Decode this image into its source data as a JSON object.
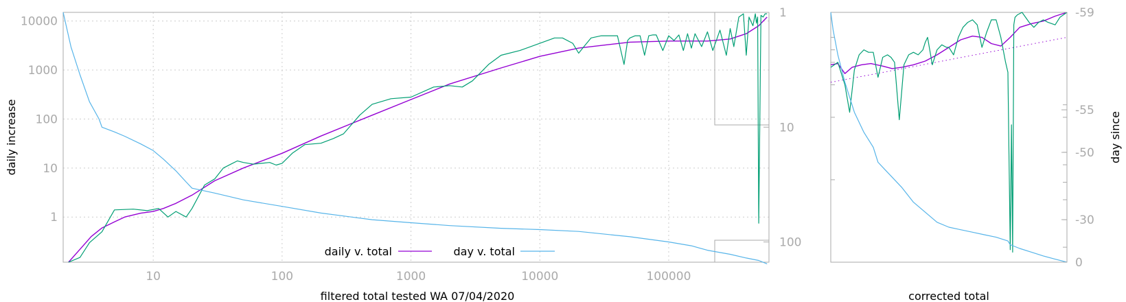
{
  "chart_data": [
    {
      "type": "line",
      "title": "",
      "xlabel": "filtered total tested WA 07/04/2020",
      "ylabel": "daily increase",
      "y2label": "",
      "x_scale": "log",
      "y_scale": "log",
      "y2_scale": "log",
      "y2_reversed": true,
      "xlim": [
        2,
        600000
      ],
      "ylim": [
        0.12,
        15000
      ],
      "y2lim": [
        1,
        150
      ],
      "grid": true,
      "legend_position": "bottom-center",
      "x_ticks": [
        "10",
        "100",
        "1000",
        "10000",
        "100000"
      ],
      "y_ticks": [
        "1",
        "10",
        "100",
        "1000",
        "10000"
      ],
      "y2_ticks": [
        "1",
        "10",
        "100"
      ],
      "colors": {
        "daily_smooth": "#9400d3",
        "daily_raw": "#009e73",
        "day": "#56b4e9",
        "frame": "#aaaaaa"
      },
      "series": [
        {
          "name": "daily v. total",
          "axis": "y",
          "x": [
            2.2,
            2.7,
            3.3,
            4,
            5,
            6,
            8,
            10,
            12,
            15,
            20,
            30,
            50,
            100,
            200,
            500,
            1000,
            2000,
            5000,
            10000,
            20000,
            50000,
            100000,
            200000,
            300000,
            400000,
            500000,
            580000
          ],
          "y": [
            0.12,
            0.22,
            0.4,
            0.6,
            0.8,
            1.0,
            1.2,
            1.3,
            1.5,
            1.9,
            2.8,
            5.5,
            10,
            20,
            45,
            120,
            250,
            520,
            1100,
            1900,
            2800,
            3700,
            3900,
            3900,
            4300,
            5500,
            8000,
            12000
          ]
        },
        {
          "name": "",
          "axis": "y",
          "x": [
            2.2,
            2.7,
            3.2,
            4,
            5,
            7,
            9,
            11,
            13,
            15,
            18,
            20,
            25,
            30,
            35,
            40,
            45,
            50,
            60,
            70,
            80,
            90,
            100,
            120,
            150,
            200,
            250,
            300,
            400,
            500,
            700,
            1000,
            1500,
            2000,
            2500,
            3000,
            4000,
            5000,
            7000,
            10000,
            13000,
            15000,
            18000,
            20000,
            22000,
            25000,
            30000,
            40000,
            45000,
            48000,
            50000,
            55000,
            60000,
            65000,
            70000,
            75000,
            80000,
            90000,
            100000,
            110000,
            120000,
            130000,
            140000,
            150000,
            160000,
            180000,
            200000,
            220000,
            250000,
            280000,
            300000,
            320000,
            350000,
            380000,
            400000,
            420000,
            450000,
            470000,
            480000,
            490000,
            500000,
            520000,
            540000,
            560000,
            580000
          ],
          "y": [
            0.12,
            0.15,
            0.3,
            0.5,
            1.4,
            1.45,
            1.35,
            1.5,
            1.0,
            1.3,
            1.0,
            1.5,
            4.5,
            6,
            10,
            12,
            14,
            13,
            12,
            12.5,
            13,
            11.5,
            12.5,
            20,
            30,
            32,
            40,
            50,
            120,
            200,
            260,
            280,
            450,
            480,
            450,
            600,
            1300,
            2000,
            2500,
            3500,
            4500,
            4500,
            3500,
            2200,
            3000,
            4500,
            5000,
            5000,
            1300,
            4000,
            4500,
            5000,
            5000,
            2000,
            5000,
            5200,
            5200,
            2500,
            5000,
            4000,
            5200,
            2500,
            5500,
            2800,
            5500,
            3000,
            6000,
            2500,
            6500,
            2000,
            7000,
            3000,
            12000,
            14000,
            2000,
            12000,
            8000,
            14000,
            9000,
            12000,
            0.75,
            13000,
            12000,
            14000,
            14000
          ]
        },
        {
          "name": "day v. total",
          "axis": "y2",
          "x": [
            2,
            2.3,
            2.7,
            3.2,
            3.8,
            4,
            5,
            6,
            8,
            10,
            12,
            15,
            18,
            20,
            30,
            50,
            100,
            200,
            500,
            1000,
            2000,
            5000,
            10000,
            20000,
            50000,
            100000,
            150000,
            200000,
            300000,
            400000,
            500000,
            580000
          ],
          "y": [
            1,
            2,
            3.5,
            6,
            8.5,
            10,
            11,
            12,
            14,
            16,
            19,
            24,
            30,
            34,
            37.5,
            43,
            49,
            56,
            64,
            68,
            72,
            76,
            78,
            81,
            90,
            100,
            108,
            118,
            128,
            138,
            145,
            155
          ]
        }
      ]
    },
    {
      "type": "line",
      "title": "",
      "xlabel": "corrected total",
      "ylabel": "",
      "y2label": "day since",
      "x_ticks": [],
      "y_ticks": [],
      "y2_ticks": [
        "-59",
        "-55",
        "-50",
        "-30",
        "0"
      ],
      "grid": false,
      "series": [
        {
          "name": "",
          "axis": "y",
          "x": [
            0,
            0.03,
            0.06,
            0.09,
            0.13,
            0.17,
            0.22,
            0.26,
            0.3,
            0.35,
            0.4,
            0.45,
            0.5,
            0.55,
            0.6,
            0.64,
            0.68,
            0.72,
            0.76,
            0.8,
            0.85,
            0.9,
            0.95,
            1.0
          ],
          "y": [
            0.79,
            0.795,
            0.755,
            0.78,
            0.79,
            0.795,
            0.785,
            0.775,
            0.78,
            0.79,
            0.805,
            0.83,
            0.86,
            0.89,
            0.905,
            0.9,
            0.875,
            0.865,
            0.9,
            0.94,
            0.955,
            0.965,
            0.985,
            1.0
          ]
        },
        {
          "name": "",
          "axis": "y",
          "x": [
            0,
            1.0
          ],
          "y": [
            0.72,
            0.9
          ]
        },
        {
          "name": "",
          "axis": "y",
          "x": [
            0,
            0.03,
            0.06,
            0.08,
            0.1,
            0.12,
            0.14,
            0.16,
            0.18,
            0.2,
            0.22,
            0.24,
            0.255,
            0.27,
            0.29,
            0.31,
            0.33,
            0.35,
            0.37,
            0.39,
            0.4,
            0.41,
            0.43,
            0.45,
            0.47,
            0.49,
            0.5,
            0.52,
            0.54,
            0.56,
            0.58,
            0.6,
            0.62,
            0.64,
            0.66,
            0.68,
            0.7,
            0.72,
            0.74,
            0.75,
            0.76,
            0.765,
            0.77,
            0.775,
            0.78,
            0.79,
            0.81,
            0.84,
            0.86,
            0.88,
            0.9,
            0.92,
            0.95,
            0.97,
            1.0
          ],
          "y": [
            0.78,
            0.8,
            0.71,
            0.6,
            0.77,
            0.83,
            0.85,
            0.84,
            0.84,
            0.74,
            0.82,
            0.83,
            0.82,
            0.8,
            0.57,
            0.79,
            0.83,
            0.84,
            0.83,
            0.85,
            0.88,
            0.9,
            0.79,
            0.85,
            0.87,
            0.86,
            0.86,
            0.83,
            0.9,
            0.94,
            0.96,
            0.97,
            0.95,
            0.86,
            0.92,
            0.97,
            0.97,
            0.9,
            0.8,
            0.76,
            0.05,
            0.55,
            0.04,
            0.95,
            0.98,
            0.99,
            1.0,
            0.96,
            0.94,
            0.96,
            0.97,
            0.96,
            0.95,
            0.98,
            1.0
          ]
        },
        {
          "name": "",
          "axis": "y",
          "x": [
            0,
            0.01,
            0.03,
            0.06,
            0.1,
            0.14,
            0.18,
            0.2,
            0.23,
            0.26,
            0.3,
            0.35,
            0.4,
            0.45,
            0.5,
            0.55,
            0.6,
            0.65,
            0.7,
            0.75,
            0.76,
            0.8,
            0.85,
            0.9,
            0.95,
            1.0
          ],
          "y": [
            1.0,
            0.93,
            0.83,
            0.72,
            0.6,
            0.52,
            0.46,
            0.4,
            0.37,
            0.34,
            0.3,
            0.24,
            0.2,
            0.16,
            0.14,
            0.13,
            0.12,
            0.11,
            0.1,
            0.085,
            0.07,
            0.055,
            0.04,
            0.025,
            0.012,
            0.0
          ]
        }
      ]
    }
  ]
}
